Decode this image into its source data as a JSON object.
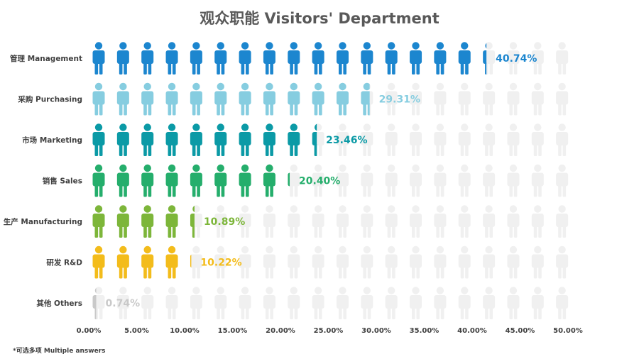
{
  "footnote": "*可选多项 Multiple answers",
  "chart_data": {
    "type": "bar",
    "title": "观众职能 Visitors' Department",
    "categories": [
      "管理 Management",
      "采购 Purchasing",
      "市场 Marketing",
      "销售 Sales",
      "生产 Manufacturing",
      "研发 R&D",
      "其他 Others"
    ],
    "values": [
      40.74,
      29.31,
      23.46,
      20.4,
      10.89,
      10.22,
      0.74
    ],
    "value_labels": [
      "40.74%",
      "29.31%",
      "23.46%",
      "20.40%",
      "10.89%",
      "10.22%",
      "0.74%"
    ],
    "colors": [
      "#1C86CF",
      "#86CDE0",
      "#0B9AA6",
      "#25AE6C",
      "#7DB63A",
      "#F3BC1B",
      "#C9C9C9"
    ],
    "empty_icon_color": "#F0F0F0",
    "icon": "person-icon",
    "xlim": [
      0,
      50
    ],
    "x_ticks": [
      "0.00%",
      "5.00%",
      "10.00%",
      "15.00%",
      "20.00%",
      "25.00%",
      "30.00%",
      "35.00%",
      "40.00%",
      "45.00%",
      "50.00%"
    ],
    "grid": false,
    "legend": "none"
  }
}
